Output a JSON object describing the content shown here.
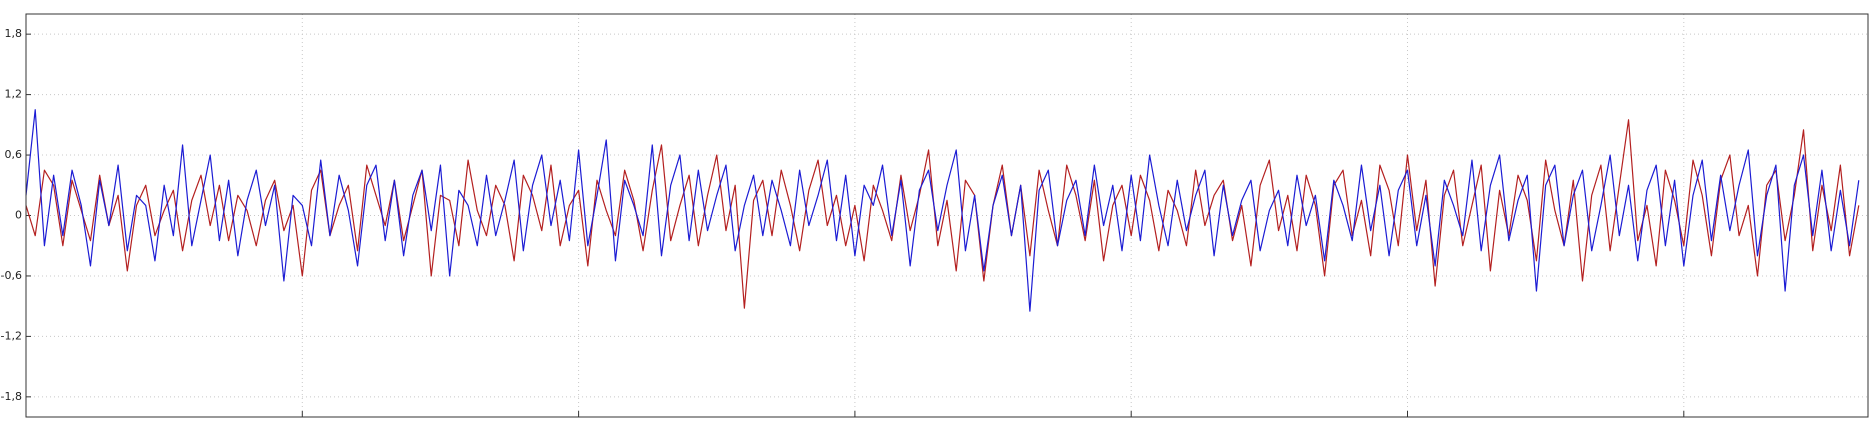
{
  "chart_data": {
    "type": "line",
    "grid": true,
    "xlim": [
      -30,
      170
    ],
    "xticks": [
      0,
      30,
      60,
      90,
      120,
      150
    ],
    "ylim": [
      -2,
      2
    ],
    "yticks": [
      {
        "value": 1.8,
        "label": "1,8"
      },
      {
        "value": 1.2,
        "label": "1,2"
      },
      {
        "value": 0.6,
        "label": "0,6"
      },
      0,
      {
        "value": -0.6,
        "label": "-0,6"
      },
      {
        "value": -1.2,
        "label": "-1,2"
      },
      {
        "value": -1.8,
        "label": "-1,8"
      }
    ],
    "x": [
      -30,
      -29,
      -28,
      -27,
      -26,
      -25,
      -24,
      -23,
      -22,
      -21,
      -20,
      -19,
      -18,
      -17,
      -16,
      -15,
      -14,
      -13,
      -12,
      -11,
      -10,
      -9,
      -8,
      -7,
      -6,
      -5,
      -4,
      -3,
      -2,
      -1,
      0,
      1,
      2,
      3,
      4,
      5,
      6,
      7,
      8,
      9,
      10,
      11,
      12,
      13,
      14,
      15,
      16,
      17,
      18,
      19,
      20,
      21,
      22,
      23,
      24,
      25,
      26,
      27,
      28,
      29,
      30,
      31,
      32,
      33,
      34,
      35,
      36,
      37,
      38,
      39,
      40,
      41,
      42,
      43,
      44,
      45,
      46,
      47,
      48,
      49,
      50,
      51,
      52,
      53,
      54,
      55,
      56,
      57,
      58,
      59,
      60,
      61,
      62,
      63,
      64,
      65,
      66,
      67,
      68,
      69,
      70,
      71,
      72,
      73,
      74,
      75,
      76,
      77,
      78,
      79,
      80,
      81,
      82,
      83,
      84,
      85,
      86,
      87,
      88,
      89,
      90,
      91,
      92,
      93,
      94,
      95,
      96,
      97,
      98,
      99,
      100,
      101,
      102,
      103,
      104,
      105,
      106,
      107,
      108,
      109,
      110,
      111,
      112,
      113,
      114,
      115,
      116,
      117,
      118,
      119,
      120,
      121,
      122,
      123,
      124,
      125,
      126,
      127,
      128,
      129,
      130,
      131,
      132,
      133,
      134,
      135,
      136,
      137,
      138,
      139,
      140,
      141,
      142,
      143,
      144,
      145,
      146,
      147,
      148,
      149,
      150,
      151,
      152,
      153,
      154,
      155,
      156,
      157,
      158,
      159,
      160,
      161,
      162,
      163,
      164,
      165,
      166,
      167,
      168,
      169
    ],
    "series": [
      {
        "color": "#b42020",
        "values": [
          0.1,
          -0.2,
          0.45,
          0.3,
          -0.3,
          0.35,
          0.05,
          -0.25,
          0.4,
          -0.1,
          0.2,
          -0.55,
          0.1,
          0.3,
          -0.2,
          0.05,
          0.25,
          -0.35,
          0.15,
          0.4,
          -0.1,
          0.3,
          -0.25,
          0.2,
          0.05,
          -0.3,
          0.15,
          0.35,
          -0.15,
          0.1,
          -0.6,
          0.25,
          0.45,
          -0.2,
          0.1,
          0.3,
          -0.35,
          0.5,
          0.2,
          -0.1,
          0.35,
          -0.25,
          0.1,
          0.45,
          -0.6,
          0.2,
          0.15,
          -0.3,
          0.55,
          0.05,
          -0.2,
          0.3,
          0.1,
          -0.45,
          0.4,
          0.2,
          -0.15,
          0.5,
          -0.3,
          0.1,
          0.25,
          -0.5,
          0.35,
          0.05,
          -0.2,
          0.45,
          0.15,
          -0.35,
          0.25,
          0.7,
          -0.25,
          0.1,
          0.4,
          -0.3,
          0.2,
          0.6,
          -0.15,
          0.3,
          -0.92,
          0.15,
          0.35,
          -0.2,
          0.45,
          0.1,
          -0.35,
          0.25,
          0.55,
          -0.1,
          0.2,
          -0.3,
          0.1,
          -0.45,
          0.3,
          0.05,
          -0.25,
          0.4,
          -0.15,
          0.2,
          0.65,
          -0.3,
          0.15,
          -0.55,
          0.35,
          0.2,
          -0.65,
          0.1,
          0.5,
          -0.2,
          0.3,
          -0.4,
          0.45,
          0.05,
          -0.3,
          0.5,
          0.2,
          -0.25,
          0.35,
          -0.45,
          0.1,
          0.3,
          -0.2,
          0.4,
          0.15,
          -0.35,
          0.25,
          0.05,
          -0.3,
          0.45,
          -0.1,
          0.2,
          0.35,
          -0.25,
          0.1,
          -0.5,
          0.3,
          0.55,
          -0.15,
          0.2,
          -0.35,
          0.4,
          0.1,
          -0.6,
          0.3,
          0.45,
          -0.2,
          0.15,
          -0.4,
          0.5,
          0.25,
          -0.3,
          0.6,
          -0.15,
          0.35,
          -0.7,
          0.2,
          0.45,
          -0.3,
          0.1,
          0.5,
          -0.55,
          0.25,
          -0.2,
          0.4,
          0.15,
          -0.45,
          0.55,
          0.05,
          -0.3,
          0.35,
          -0.65,
          0.2,
          0.5,
          -0.35,
          0.3,
          0.95,
          -0.25,
          0.1,
          -0.5,
          0.45,
          0.15,
          -0.3,
          0.55,
          0.2,
          -0.4,
          0.35,
          0.6,
          -0.2,
          0.1,
          -0.6,
          0.3,
          0.45,
          -0.25,
          0.2,
          0.85,
          -0.35,
          0.3,
          -0.15,
          0.5,
          -0.4,
          0.1
        ]
      },
      {
        "color": "#1c1cd4",
        "values": [
          0.2,
          1.05,
          -0.3,
          0.4,
          -0.2,
          0.45,
          0.1,
          -0.5,
          0.35,
          -0.1,
          0.5,
          -0.35,
          0.2,
          0.1,
          -0.45,
          0.3,
          -0.2,
          0.7,
          -0.3,
          0.15,
          0.6,
          -0.25,
          0.35,
          -0.4,
          0.15,
          0.45,
          -0.1,
          0.3,
          -0.65,
          0.2,
          0.1,
          -0.3,
          0.55,
          -0.2,
          0.4,
          0.05,
          -0.5,
          0.3,
          0.5,
          -0.25,
          0.35,
          -0.4,
          0.2,
          0.45,
          -0.15,
          0.5,
          -0.6,
          0.25,
          0.1,
          -0.3,
          0.4,
          -0.2,
          0.15,
          0.55,
          -0.35,
          0.3,
          0.6,
          -0.1,
          0.35,
          -0.25,
          0.65,
          -0.3,
          0.2,
          0.75,
          -0.45,
          0.35,
          0.1,
          -0.2,
          0.7,
          -0.4,
          0.3,
          0.6,
          -0.25,
          0.45,
          -0.15,
          0.2,
          0.5,
          -0.35,
          0.1,
          0.4,
          -0.2,
          0.35,
          0.05,
          -0.3,
          0.45,
          -0.1,
          0.2,
          0.55,
          -0.25,
          0.4,
          -0.4,
          0.3,
          0.1,
          0.5,
          -0.2,
          0.35,
          -0.5,
          0.25,
          0.45,
          -0.15,
          0.3,
          0.65,
          -0.35,
          0.2,
          -0.55,
          0.1,
          0.4,
          -0.2,
          0.3,
          -0.95,
          0.25,
          0.45,
          -0.3,
          0.15,
          0.35,
          -0.2,
          0.5,
          -0.1,
          0.3,
          -0.35,
          0.4,
          -0.25,
          0.6,
          0.1,
          -0.3,
          0.35,
          -0.15,
          0.2,
          0.45,
          -0.4,
          0.3,
          -0.2,
          0.15,
          0.35,
          -0.35,
          0.05,
          0.25,
          -0.3,
          0.4,
          -0.1,
          0.2,
          -0.45,
          0.35,
          0.1,
          -0.25,
          0.5,
          -0.15,
          0.3,
          -0.4,
          0.25,
          0.45,
          -0.3,
          0.2,
          -0.5,
          0.35,
          0.1,
          -0.2,
          0.55,
          -0.35,
          0.3,
          0.6,
          -0.25,
          0.15,
          0.4,
          -0.75,
          0.3,
          0.5,
          -0.3,
          0.2,
          0.45,
          -0.35,
          0.1,
          0.6,
          -0.2,
          0.3,
          -0.45,
          0.25,
          0.5,
          -0.3,
          0.35,
          -0.5,
          0.2,
          0.55,
          -0.25,
          0.4,
          -0.15,
          0.3,
          0.65,
          -0.4,
          0.2,
          0.5,
          -0.75,
          0.3,
          0.6,
          -0.2,
          0.45,
          -0.35,
          0.25,
          -0.3,
          0.35
        ]
      }
    ]
  }
}
